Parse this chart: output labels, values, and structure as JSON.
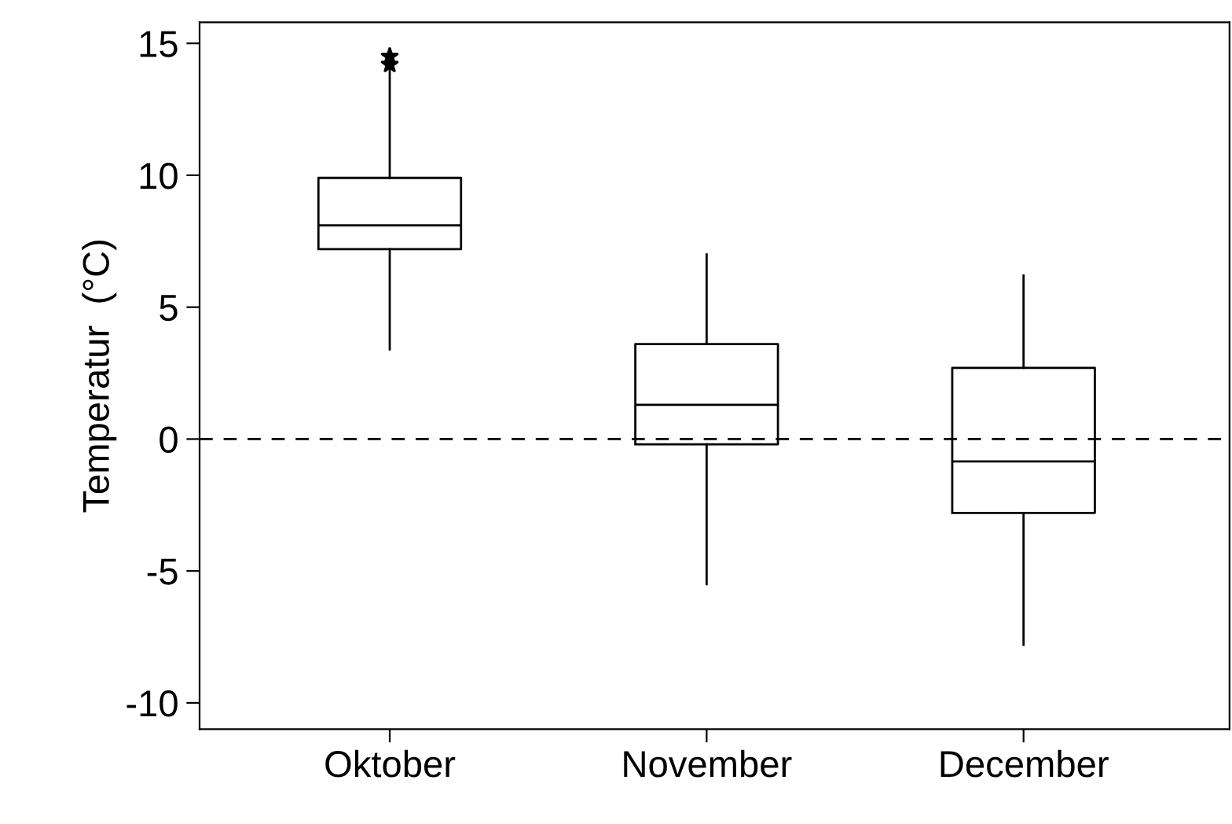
{
  "chart_data": {
    "type": "box",
    "ylabel": "Temperatur  (°C)",
    "categories": [
      "Oktober",
      "November",
      "December"
    ],
    "boxes": [
      {
        "low": 3.4,
        "q1": 7.2,
        "median": 8.1,
        "q3": 9.9,
        "high": 14.0,
        "outliers": [
          14.2,
          14.5
        ]
      },
      {
        "low": -5.5,
        "q1": -0.2,
        "median": 1.3,
        "q3": 3.6,
        "high": 7.0
      },
      {
        "low": -7.8,
        "q1": -2.8,
        "median": -0.85,
        "q3": 2.7,
        "high": 6.2
      }
    ],
    "ylim": [
      -11,
      15.8
    ],
    "yticks": [
      -10,
      -5,
      0,
      5,
      10,
      15
    ],
    "ref_lines": [
      {
        "axis": "y",
        "value": 0,
        "line_style": "dashed",
        "color": "#000000"
      }
    ],
    "marker": "star",
    "grid": false
  }
}
